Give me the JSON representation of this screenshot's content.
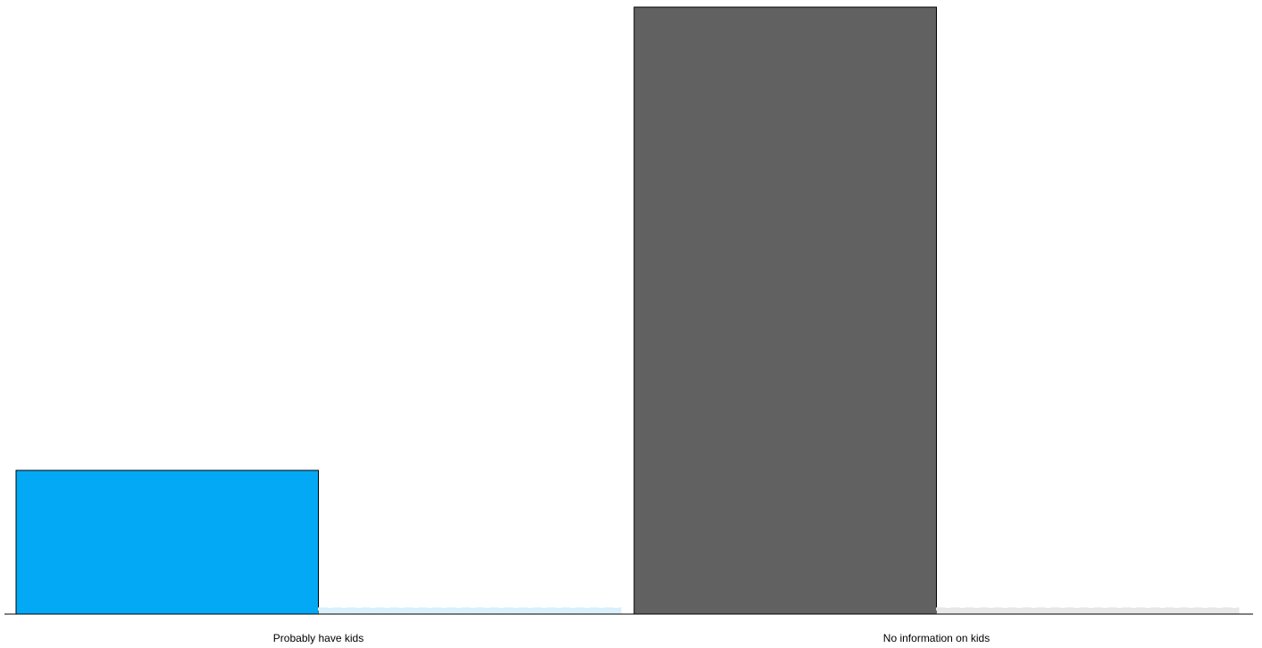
{
  "chart_data": {
    "type": "bar",
    "categories": [
      "Probably have kids",
      "No information on kids"
    ],
    "series": [
      {
        "values": [
          161,
          680
        ],
        "colors": [
          "#03a9f4",
          "#616161"
        ],
        "style": "solid"
      },
      {
        "values": [
          7,
          7
        ],
        "colors": [
          "#d6eefa",
          "#e5e5e5"
        ],
        "style": "dashed"
      }
    ],
    "ylim": [
      0,
      680
    ],
    "grid": false,
    "legend": "none",
    "axis_color": "#000000"
  }
}
